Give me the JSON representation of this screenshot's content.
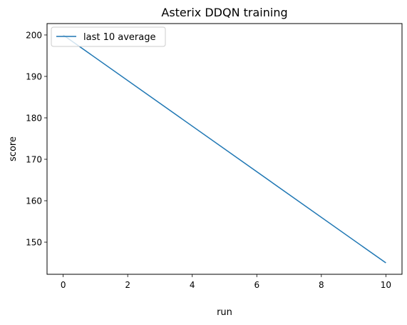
{
  "chart_data": {
    "type": "line",
    "title": "Asterix DDQN training",
    "xlabel": "run",
    "ylabel": "score",
    "xlim": [
      -0.5,
      10.5
    ],
    "ylim": [
      142.25,
      202.75
    ],
    "xticks": [
      0,
      2,
      4,
      6,
      8,
      10
    ],
    "yticks": [
      150,
      160,
      170,
      180,
      190,
      200
    ],
    "grid": false,
    "legend_position": "upper left",
    "series": [
      {
        "name": "last 10 average",
        "color": "#1f77b4",
        "x": [
          0,
          10
        ],
        "y": [
          200,
          145
        ]
      }
    ]
  }
}
